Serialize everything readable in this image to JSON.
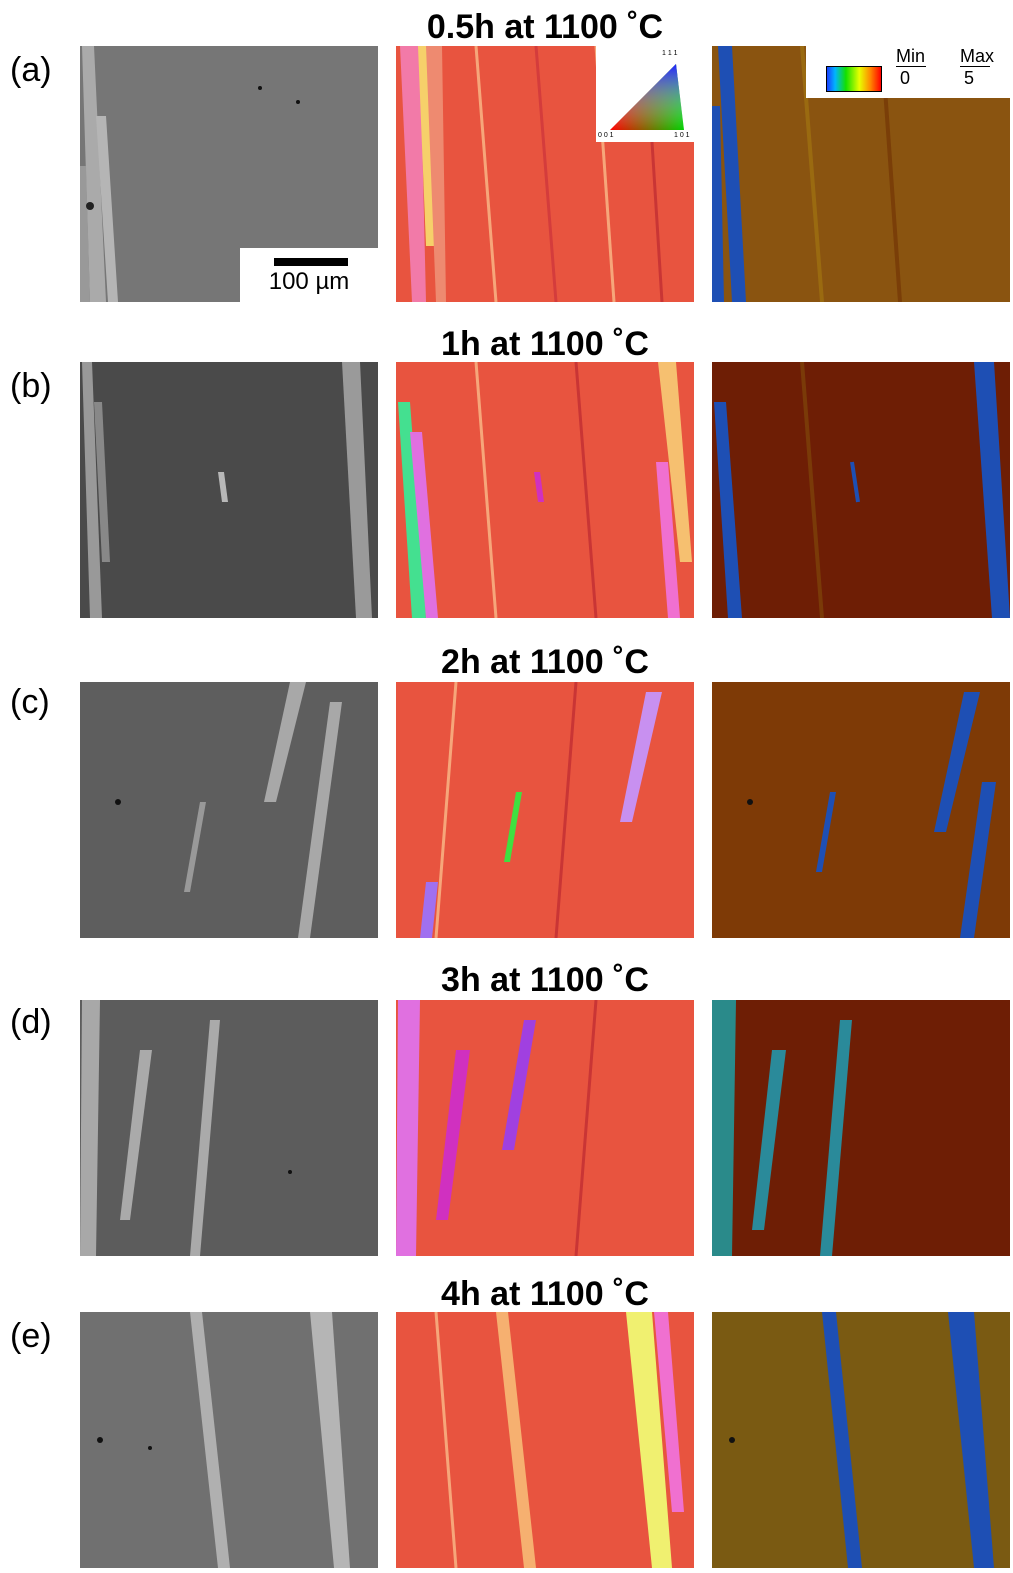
{
  "panels": [
    {
      "label": "(a)",
      "title": "0.5h at 1100 ˚C"
    },
    {
      "label": "(b)",
      "title": "1h at 1100 ˚C"
    },
    {
      "label": "(c)",
      "title": "2h at 1100 ˚C"
    },
    {
      "label": "(d)",
      "title": "3h at 1100 ˚C"
    },
    {
      "label": "(e)",
      "title": "4h at 1100 ˚C"
    }
  ],
  "scale_bar": {
    "label": "100 µm"
  },
  "ipf_key": {
    "corner_111": "1 1 1",
    "corner_001": "0 0 1",
    "corner_101": "1 0 1"
  },
  "kam_legend": {
    "min_label": "Min",
    "max_label": "Max",
    "min_value": "0",
    "max_value": "5"
  },
  "colors": {
    "ipf_matrix": "#e8543f",
    "kam_matrix": "#6e1e05",
    "kam_grain": "#1e4fb4",
    "sem_matrix": "#5e5e5e",
    "sem_grain": "#a9a9a9"
  }
}
